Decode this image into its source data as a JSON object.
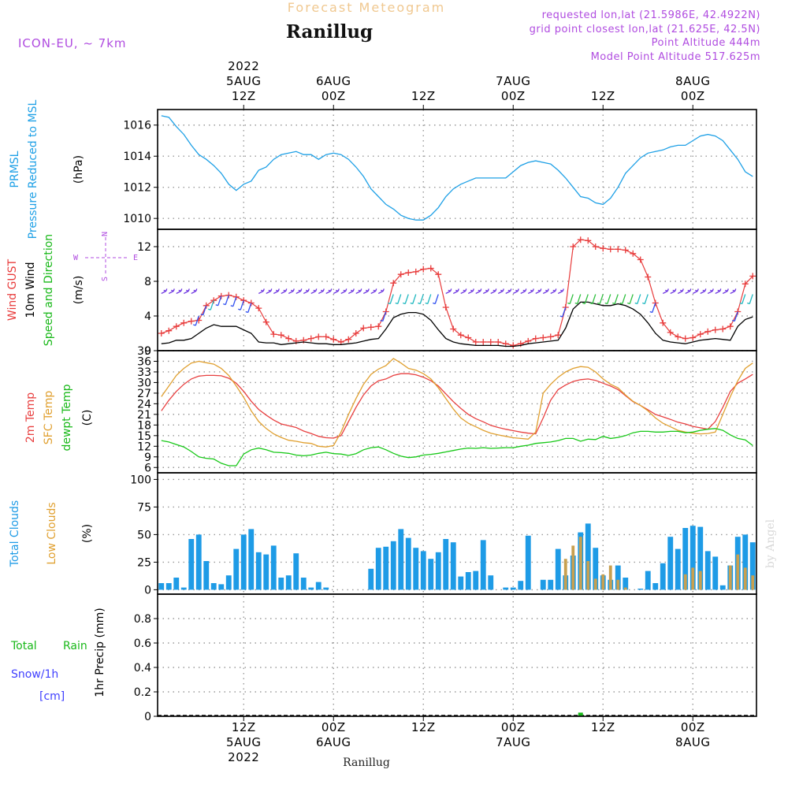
{
  "header": {
    "product": "Forecast Meteogram",
    "location": "Ranillug",
    "model": "ICON-EU, ~ 7km",
    "requested": "requested lon,lat (21.5986E, 42.4922N)",
    "gridpoint": "grid point closest lon,lat (21.625E, 42.5N)",
    "point_alt": "Point Altitude 444m",
    "model_alt": "Model Point Altitude 517.625m",
    "footer_location": "Ranillug",
    "credit": "by Angel"
  },
  "time_axis": {
    "top": [
      {
        "t": 12,
        "lines": [
          "2022",
          "5AUG",
          "12Z"
        ]
      },
      {
        "t": 24,
        "lines": [
          "6AUG",
          "00Z"
        ]
      },
      {
        "t": 36,
        "lines": [
          "12Z"
        ]
      },
      {
        "t": 48,
        "lines": [
          "7AUG",
          "00Z"
        ]
      },
      {
        "t": 60,
        "lines": [
          "12Z"
        ]
      },
      {
        "t": 72,
        "lines": [
          "8AUG",
          "00Z"
        ]
      }
    ],
    "bottom": [
      {
        "t": 12,
        "lines": [
          "12Z",
          "5AUG",
          "2022"
        ]
      },
      {
        "t": 24,
        "lines": [
          "00Z",
          "6AUG"
        ]
      },
      {
        "t": 36,
        "lines": [
          "12Z"
        ]
      },
      {
        "t": 48,
        "lines": [
          "00Z",
          "7AUG"
        ]
      },
      {
        "t": 60,
        "lines": [
          "12Z"
        ]
      },
      {
        "t": 72,
        "lines": [
          "00Z",
          "8AUG"
        ]
      }
    ]
  },
  "colors": {
    "pressure": "#1ea0e6",
    "gust": "#e83c3c",
    "wind": "#000000",
    "temp2m": "#e84040",
    "sfc": "#e0a030",
    "dewpt": "#18c818",
    "totalclouds": "#1e9be6",
    "lowclouds": "#c8a050",
    "rain": "#18b818",
    "snow": "#4040ff",
    "purple": "#b04ce0"
  },
  "panels": {
    "pressure": {
      "labels": [
        "PRMSL",
        "Pressure Reduced to MSL"
      ],
      "unit": "(hPa)",
      "ticks": [
        "1010",
        "1012",
        "1014",
        "1016"
      ]
    },
    "wind": {
      "labels": [
        "Wind GUST",
        "10m Wind",
        "Speed and Direction"
      ],
      "unit": "(m/s)",
      "ticks": [
        "0",
        "4",
        "8",
        "12"
      ],
      "compass": {
        "w": "W",
        "e": "E",
        "n": "N",
        "s": "S"
      }
    },
    "temp": {
      "labels": [
        "2m Temp",
        "SFC Temp",
        "dewpt Temp"
      ],
      "unit": "(C)",
      "ticks": [
        "6",
        "9",
        "12",
        "15",
        "18",
        "21",
        "24",
        "27",
        "30",
        "33",
        "36",
        "39"
      ]
    },
    "clouds": {
      "labels": [
        "Total Clouds",
        "Low Clouds"
      ],
      "unit": "(%)",
      "ticks": [
        "0",
        "25",
        "50",
        "75",
        "100"
      ]
    },
    "precip": {
      "labels": [
        "Total",
        "Rain",
        "Snow/1h",
        "[cm]"
      ],
      "unit": "1hr Precip (mm)",
      "ticks": [
        "0",
        "0.2",
        "0.4",
        "0.6",
        "0.8"
      ]
    }
  },
  "chart_data": [
    {
      "type": "line",
      "title": "PRMSL Pressure Reduced to MSL",
      "ylabel": "(hPa)",
      "ylim": [
        1009.3,
        1017.0
      ],
      "x_hours": [
        1,
        2,
        3,
        4,
        5,
        6,
        7,
        8,
        9,
        10,
        11,
        12,
        13,
        14,
        15,
        16,
        17,
        18,
        19,
        20,
        21,
        22,
        23,
        24,
        25,
        26,
        27,
        28,
        29,
        30,
        31,
        32,
        33,
        34,
        35,
        36,
        37,
        38,
        39,
        40,
        41,
        42,
        43,
        44,
        45,
        46,
        47,
        48,
        49,
        50,
        51,
        52,
        53,
        54,
        55,
        56,
        57,
        58,
        59,
        60,
        61,
        62,
        63,
        64,
        65,
        66,
        67,
        68,
        69,
        70,
        71,
        72,
        73,
        74,
        75,
        76,
        77,
        78,
        79,
        80
      ],
      "series": [
        {
          "values": [
            1016.6,
            1016.5,
            1015.9,
            1015.4,
            1014.7,
            1014.1,
            1013.8,
            1013.4,
            1012.9,
            1012.2,
            1011.8,
            1012.2,
            1012.4,
            1013.1,
            1013.3,
            1013.8,
            1014.1,
            1014.2,
            1014.3,
            1014.1,
            1014.1,
            1013.8,
            1014.1,
            1014.2,
            1014.1,
            1013.8,
            1013.3,
            1012.7,
            1011.9,
            1011.4,
            1010.9,
            1010.6,
            1010.2,
            1010.0,
            1009.9,
            1009.9,
            1010.2,
            1010.7,
            1011.4,
            1011.9,
            1012.2,
            1012.4,
            1012.6,
            1012.6,
            1012.6,
            1012.6,
            1012.6,
            1013.0,
            1013.4,
            1013.6,
            1013.7,
            1013.6,
            1013.5,
            1013.1,
            1012.6,
            1012.0,
            1011.4,
            1011.3,
            1011.0,
            1010.9,
            1011.3,
            1012.0,
            1012.9,
            1013.4,
            1013.9,
            1014.2,
            1014.3,
            1014.4,
            1014.6,
            1014.7,
            1014.7,
            1015.0,
            1015.3,
            1015.4,
            1015.3,
            1015.0,
            1014.4,
            1013.8,
            1013.0,
            1012.7
          ]
        }
      ]
    },
    {
      "type": "line",
      "title": "Wind GUST / 10m Wind",
      "ylabel": "(m/s)",
      "ylim": [
        0,
        14
      ],
      "x_hours": [
        1,
        2,
        3,
        4,
        5,
        6,
        7,
        8,
        9,
        10,
        11,
        12,
        13,
        14,
        15,
        16,
        17,
        18,
        19,
        20,
        21,
        22,
        23,
        24,
        25,
        26,
        27,
        28,
        29,
        30,
        31,
        32,
        33,
        34,
        35,
        36,
        37,
        38,
        39,
        40,
        41,
        42,
        43,
        44,
        45,
        46,
        47,
        48,
        49,
        50,
        51,
        52,
        53,
        54,
        55,
        56,
        57,
        58,
        59,
        60,
        61,
        62,
        63,
        64,
        65,
        66,
        67,
        68,
        69,
        70,
        71,
        72,
        73,
        74,
        75,
        76,
        77,
        78,
        79,
        80
      ],
      "series": [
        {
          "name": "Wind GUST",
          "values": [
            2.0,
            2.3,
            2.8,
            3.2,
            3.4,
            3.5,
            5.2,
            5.8,
            6.3,
            6.4,
            6.2,
            5.8,
            5.5,
            4.9,
            3.3,
            1.9,
            1.8,
            1.4,
            1.1,
            1.2,
            1.4,
            1.6,
            1.6,
            1.3,
            1.0,
            1.3,
            2.0,
            2.6,
            2.7,
            2.8,
            4.5,
            7.8,
            8.8,
            9.0,
            9.1,
            9.4,
            9.5,
            8.8,
            5.0,
            2.5,
            1.8,
            1.5,
            1.0,
            1.0,
            1.0,
            1.0,
            0.8,
            0.6,
            0.8,
            1.1,
            1.4,
            1.5,
            1.6,
            1.8,
            5.0,
            12.0,
            12.8,
            12.7,
            12.0,
            11.8,
            11.7,
            11.7,
            11.6,
            11.2,
            10.5,
            8.5,
            5.5,
            3.2,
            2.1,
            1.6,
            1.4,
            1.5,
            1.9,
            2.2,
            2.4,
            2.5,
            2.8,
            4.5,
            7.7,
            8.6
          ]
        },
        {
          "name": "10m Wind",
          "values": [
            0.8,
            0.9,
            1.2,
            1.2,
            1.4,
            2.0,
            2.6,
            3.0,
            2.8,
            2.8,
            2.8,
            2.4,
            2.0,
            1.0,
            0.9,
            0.9,
            0.7,
            0.8,
            0.9,
            1.0,
            0.9,
            0.8,
            0.8,
            0.7,
            0.7,
            0.8,
            0.9,
            1.1,
            1.3,
            1.4,
            2.5,
            3.8,
            4.2,
            4.4,
            4.4,
            4.2,
            3.5,
            2.4,
            1.4,
            1.0,
            0.8,
            0.7,
            0.6,
            0.6,
            0.6,
            0.6,
            0.5,
            0.5,
            0.6,
            0.8,
            0.9,
            1.0,
            1.1,
            1.2,
            2.6,
            4.8,
            5.6,
            5.6,
            5.4,
            5.2,
            5.2,
            5.4,
            5.2,
            4.8,
            4.2,
            3.2,
            2.0,
            1.2,
            1.0,
            0.9,
            0.8,
            1.0,
            1.2,
            1.3,
            1.4,
            1.3,
            1.2,
            2.8,
            3.6,
            3.9
          ]
        }
      ]
    },
    {
      "type": "line",
      "title": "2m Temp / SFC Temp / dewpt Temp",
      "ylabel": "(C)",
      "ylim": [
        4.5,
        39
      ],
      "x_hours": [
        1,
        2,
        3,
        4,
        5,
        6,
        7,
        8,
        9,
        10,
        11,
        12,
        13,
        14,
        15,
        16,
        17,
        18,
        19,
        20,
        21,
        22,
        23,
        24,
        25,
        26,
        27,
        28,
        29,
        30,
        31,
        32,
        33,
        34,
        35,
        36,
        37,
        38,
        39,
        40,
        41,
        42,
        43,
        44,
        45,
        46,
        47,
        48,
        49,
        50,
        51,
        52,
        53,
        54,
        55,
        56,
        57,
        58,
        59,
        60,
        61,
        62,
        63,
        64,
        65,
        66,
        67,
        68,
        69,
        70,
        71,
        72,
        73,
        74,
        75,
        76,
        77,
        78,
        79,
        80
      ],
      "series": [
        {
          "name": "2m Temp",
          "values": [
            22.0,
            25.0,
            27.5,
            29.5,
            31.0,
            31.8,
            32.0,
            32.0,
            31.9,
            31.2,
            29.8,
            27.5,
            24.7,
            22.4,
            20.8,
            19.4,
            18.3,
            17.8,
            17.3,
            16.3,
            15.6,
            14.8,
            14.4,
            14.3,
            15.0,
            19.0,
            23.0,
            26.5,
            29.0,
            30.5,
            31.0,
            32.0,
            32.5,
            32.5,
            32.2,
            31.5,
            30.5,
            29.0,
            26.8,
            24.6,
            22.7,
            21.0,
            19.8,
            18.9,
            17.9,
            17.3,
            16.8,
            16.4,
            16.0,
            15.7,
            15.5,
            20.0,
            25.0,
            28.0,
            29.3,
            30.3,
            30.8,
            31.0,
            30.6,
            29.8,
            29.0,
            28.0,
            26.3,
            24.6,
            23.5,
            22.3,
            21.0,
            20.3,
            19.6,
            18.8,
            18.3,
            17.6,
            17.2,
            16.8,
            19.0,
            23.0,
            27.5,
            29.8,
            31.0,
            32.3
          ]
        },
        {
          "name": "SFC Temp",
          "values": [
            26.0,
            29.0,
            32.0,
            34.0,
            35.5,
            36.0,
            35.6,
            35.2,
            34.0,
            32.0,
            29.0,
            25.8,
            22.0,
            19.0,
            17.0,
            15.5,
            14.5,
            13.7,
            13.4,
            13.0,
            12.8,
            12.0,
            11.8,
            12.2,
            16.0,
            21.0,
            25.5,
            29.5,
            32.3,
            33.8,
            34.8,
            36.8,
            35.5,
            34.0,
            33.5,
            32.5,
            31.0,
            28.5,
            25.5,
            22.5,
            20.0,
            18.5,
            17.5,
            16.5,
            15.7,
            15.2,
            14.8,
            14.4,
            14.2,
            14.0,
            16.0,
            27.0,
            29.5,
            31.5,
            33.0,
            34.0,
            34.5,
            34.3,
            33.0,
            31.0,
            29.5,
            28.5,
            26.5,
            24.7,
            23.5,
            22.0,
            20.0,
            18.5,
            17.5,
            16.5,
            16.0,
            15.7,
            15.5,
            15.6,
            16.0,
            21.0,
            26.0,
            30.5,
            34.0,
            35.5
          ]
        },
        {
          "name": "dewpt Temp",
          "values": [
            13.6,
            13.2,
            12.5,
            11.8,
            10.5,
            9.0,
            8.6,
            8.4,
            7.2,
            6.5,
            6.5,
            9.8,
            11.0,
            11.5,
            11.0,
            10.3,
            10.2,
            10.0,
            9.5,
            9.3,
            9.5,
            10.0,
            10.3,
            9.9,
            9.8,
            9.4,
            9.9,
            11.0,
            11.6,
            11.8,
            11.0,
            10.0,
            9.2,
            8.8,
            9.0,
            9.5,
            9.7,
            10.0,
            10.4,
            10.8,
            11.2,
            11.5,
            11.4,
            11.6,
            11.4,
            11.5,
            11.6,
            11.6,
            12.0,
            12.3,
            12.8,
            13.0,
            13.2,
            13.6,
            14.2,
            14.2,
            13.4,
            14.0,
            13.9,
            14.8,
            14.2,
            14.5,
            15.0,
            15.8,
            16.2,
            16.2,
            16.0,
            16.0,
            16.2,
            16.2,
            15.8,
            16.0,
            16.5,
            16.8,
            17.0,
            16.5,
            15.2,
            14.2,
            13.8,
            12.2
          ]
        }
      ]
    },
    {
      "type": "bar",
      "title": "Total Clouds / Low Clouds",
      "ylabel": "(%)",
      "ylim": [
        -4,
        106
      ],
      "x_hours": [
        1,
        2,
        3,
        4,
        5,
        6,
        7,
        8,
        9,
        10,
        11,
        12,
        13,
        14,
        15,
        16,
        17,
        18,
        19,
        20,
        21,
        22,
        23,
        24,
        25,
        26,
        27,
        28,
        29,
        30,
        31,
        32,
        33,
        34,
        35,
        36,
        37,
        38,
        39,
        40,
        41,
        42,
        43,
        44,
        45,
        46,
        47,
        48,
        49,
        50,
        51,
        52,
        53,
        54,
        55,
        56,
        57,
        58,
        59,
        60,
        61,
        62,
        63,
        64,
        65,
        66,
        67,
        68,
        69,
        70,
        71,
        72,
        73,
        74,
        75,
        76,
        77,
        78,
        79,
        80
      ],
      "series": [
        {
          "name": "Total Clouds",
          "values": [
            6,
            6,
            11,
            2,
            46,
            50,
            26,
            6,
            5,
            13,
            37,
            50,
            55,
            34,
            32,
            40,
            11,
            13,
            33,
            11,
            2,
            7,
            2,
            0,
            0,
            0,
            0,
            0,
            19,
            38,
            39,
            44,
            55,
            47,
            38,
            35,
            28,
            34,
            46,
            43,
            12,
            16,
            17,
            45,
            13,
            0,
            2,
            2,
            8,
            49,
            0,
            9,
            9,
            37,
            13,
            31,
            52,
            60,
            38,
            13,
            9,
            22,
            11,
            0,
            1,
            17,
            6,
            24,
            48,
            37,
            56,
            58,
            57,
            35,
            30,
            4,
            22,
            48,
            50,
            43
          ]
        },
        {
          "name": "Low Clouds",
          "values": [
            0,
            0,
            0,
            0,
            0,
            0,
            0,
            0,
            0,
            0,
            0,
            0,
            0,
            0,
            0,
            0,
            0,
            0,
            0,
            0,
            0,
            0,
            0,
            0,
            0,
            0,
            0,
            0,
            0,
            0,
            0,
            0,
            0,
            0,
            0,
            0,
            0,
            0,
            0,
            0,
            0,
            0,
            0,
            0,
            0,
            0,
            0,
            0,
            0,
            0,
            0,
            0,
            0,
            0,
            28,
            40,
            48,
            26,
            10,
            14,
            22,
            9,
            2,
            0,
            0,
            0,
            0,
            0,
            0,
            0,
            14,
            20,
            17,
            0,
            0,
            0,
            22,
            32,
            20,
            13
          ]
        }
      ]
    },
    {
      "type": "bar",
      "title": "1hr Precip",
      "ylabel": "1hr Precip (mm)",
      "ylim": [
        0,
        1.0
      ],
      "series": [
        {
          "name": "Total Rain",
          "hour": 57,
          "value": 0.03
        }
      ]
    }
  ]
}
